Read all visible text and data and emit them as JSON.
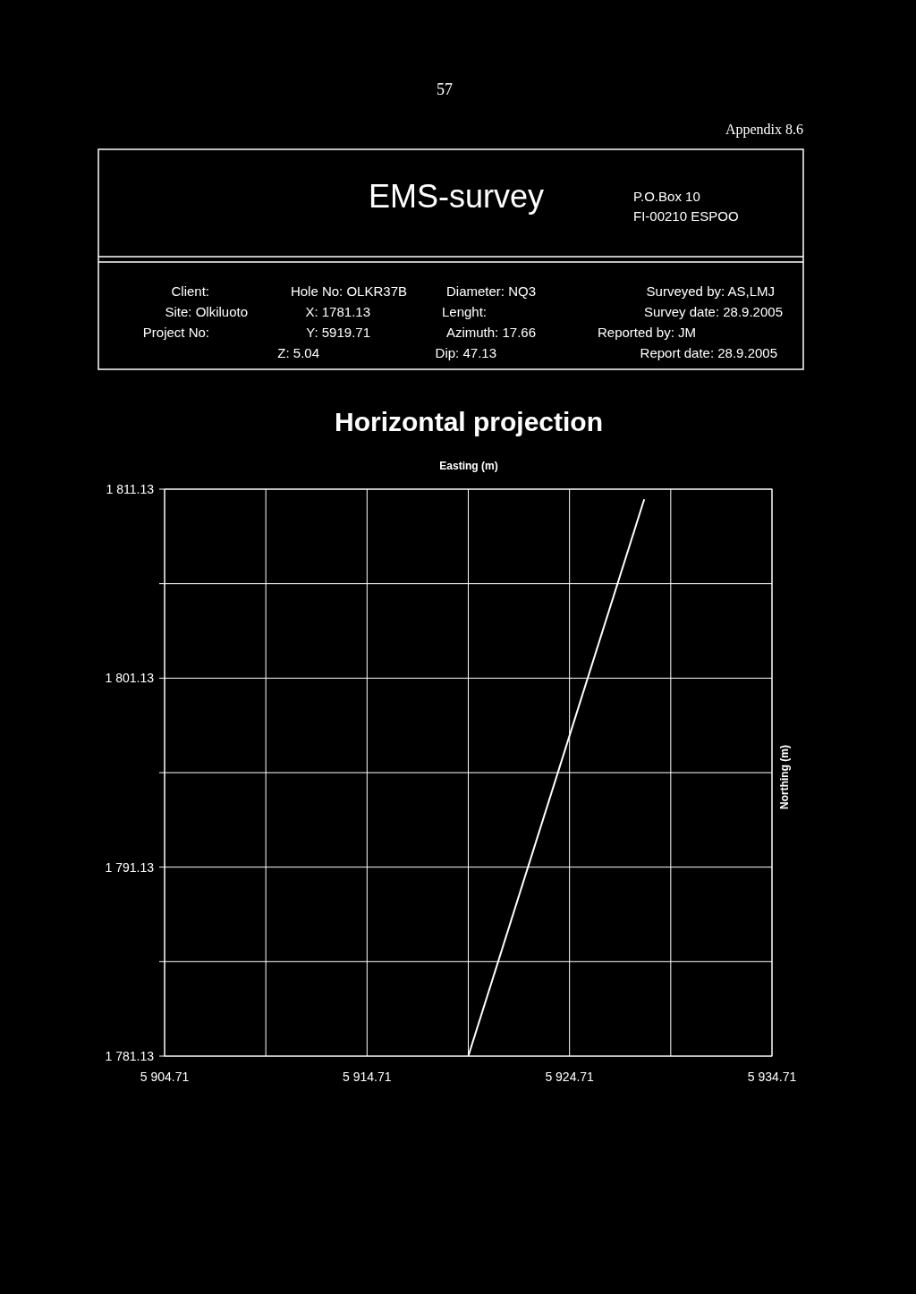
{
  "chart_data": {
    "type": "line",
    "title": "Horizontal projection",
    "xlabel": "Easting (m)",
    "ylabel": "Northing (m)",
    "annotations": [
      "57",
      "Appendix 8.6",
      "EMS-survey",
      "P.O.Box 10",
      "FI-00210 ESPOO",
      "Client:",
      "Site: Olkiluoto",
      "Project No:",
      "Hole No: OLKR37B",
      "X: 1781.13",
      "Y: 5919.71",
      "Z: 5.04",
      "Diameter: NQ3",
      "Lenght:",
      "Azimuth: 17.66",
      "Dip: 47.13",
      "Surveyed by: AS,LMJ",
      "Survey date: 28.9.2005",
      "Reported by: JM",
      "Report date: 28.9.2005"
    ],
    "series": [
      {
        "color": "#ffffff",
        "x": [
          5919.71,
          5928.4
        ],
        "values": [
          1781.13,
          1810.6
        ]
      }
    ],
    "xlim": [
      5904.71,
      5934.71
    ],
    "ylim": [
      1781.13,
      1811.13
    ],
    "xticks": [
      {
        "value": 5904.71,
        "label": "5 904.71"
      },
      {
        "value": 5909.71,
        "label": null
      },
      {
        "value": 5914.71,
        "label": "5 914.71"
      },
      {
        "value": 5919.71,
        "label": null
      },
      {
        "value": 5924.71,
        "label": "5 924.71"
      },
      {
        "value": 5929.71,
        "label": null
      },
      {
        "value": 5934.71,
        "label": "5 934.71"
      }
    ],
    "yticks": [
      {
        "value": 1781.13,
        "label": "1 781.13"
      },
      {
        "value": 1786.13,
        "label": null
      },
      {
        "value": 1791.13,
        "label": "1 791.13"
      },
      {
        "value": 1796.13,
        "label": null
      },
      {
        "value": 1801.13,
        "label": "1 801.13"
      },
      {
        "value": 1806.13,
        "label": null
      },
      {
        "value": 1811.13,
        "label": "1 811.13"
      }
    ],
    "grid": true,
    "marker": "none",
    "line_style": "solid"
  }
}
